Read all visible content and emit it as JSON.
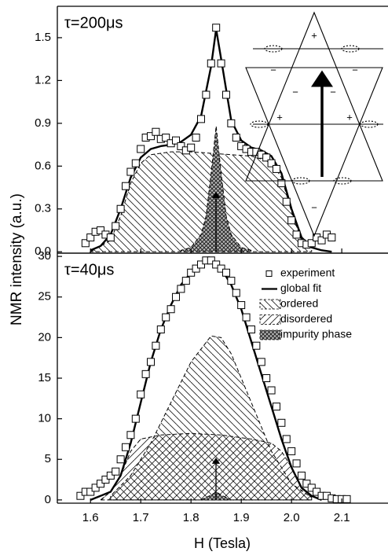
{
  "chart_data": [
    {
      "type": "line",
      "annotation": "τ=200μs",
      "ylabel": "NMR intensity (a.u.)",
      "xlim": [
        1.534,
        2.192
      ],
      "ylim": [
        -0.01,
        1.72
      ],
      "yticks": [
        {
          "value": 0,
          "label": "0.0"
        },
        0.3,
        0.6,
        0.9,
        1.2,
        1.5
      ],
      "inset_signs": [
        "+",
        "−",
        "−",
        "−",
        "−",
        "+",
        "+",
        "−"
      ],
      "series": [
        {
          "style": "area",
          "pattern": "back-diagonal",
          "color": "#000",
          "x": [
            1.6,
            1.64,
            1.66,
            1.68,
            1.7,
            1.72,
            1.76,
            1.8,
            1.84,
            1.88,
            1.92,
            1.96,
            1.98,
            2.0,
            2.02,
            2.04
          ],
          "values": [
            0,
            0.08,
            0.25,
            0.48,
            0.62,
            0.68,
            0.7,
            0.7,
            0.69,
            0.68,
            0.67,
            0.63,
            0.52,
            0.28,
            0.08,
            0.01
          ]
        },
        {
          "style": "area",
          "pattern": "cross",
          "color": "#000",
          "x": [
            1.78,
            1.8,
            1.82,
            1.83,
            1.84,
            1.85,
            1.86,
            1.87,
            1.88,
            1.9,
            1.92
          ],
          "values": [
            0.01,
            0.03,
            0.12,
            0.25,
            0.55,
            0.88,
            0.55,
            0.25,
            0.12,
            0.03,
            0.01
          ]
        },
        {
          "style": "line",
          "color": "#000",
          "x": [
            1.6,
            1.62,
            1.64,
            1.66,
            1.68,
            1.7,
            1.72,
            1.74,
            1.76,
            1.78,
            1.8,
            1.82,
            1.84,
            1.85,
            1.86,
            1.88,
            1.9,
            1.92,
            1.94,
            1.96,
            1.98,
            2.0,
            2.02,
            2.04,
            2.06,
            2.08
          ],
          "values": [
            0.01,
            0.04,
            0.12,
            0.3,
            0.52,
            0.66,
            0.72,
            0.74,
            0.75,
            0.77,
            0.82,
            0.95,
            1.3,
            1.56,
            1.35,
            0.92,
            0.78,
            0.73,
            0.71,
            0.67,
            0.55,
            0.3,
            0.1,
            0.03,
            0.01,
            0
          ]
        },
        {
          "style": "markers",
          "color": "#000",
          "x": [
            1.59,
            1.6,
            1.61,
            1.62,
            1.63,
            1.64,
            1.65,
            1.66,
            1.67,
            1.68,
            1.69,
            1.7,
            1.71,
            1.72,
            1.73,
            1.74,
            1.75,
            1.76,
            1.77,
            1.78,
            1.79,
            1.8,
            1.81,
            1.82,
            1.83,
            1.84,
            1.85,
            1.86,
            1.87,
            1.88,
            1.89,
            1.9,
            1.91,
            1.92,
            1.93,
            1.94,
            1.95,
            1.96,
            1.97,
            1.98,
            1.99,
            2.0,
            2.01,
            2.02,
            2.03,
            2.04,
            2.05,
            2.06,
            2.07,
            2.08
          ],
          "values": [
            0.06,
            0.1,
            0.14,
            0.15,
            0.12,
            0.1,
            0.18,
            0.3,
            0.46,
            0.56,
            0.62,
            0.72,
            0.8,
            0.81,
            0.84,
            0.79,
            0.8,
            0.76,
            0.78,
            0.74,
            0.71,
            0.73,
            0.8,
            0.93,
            1.1,
            1.32,
            1.57,
            1.32,
            1.1,
            0.9,
            0.8,
            0.74,
            0.72,
            0.7,
            0.7,
            0.68,
            0.66,
            0.62,
            0.58,
            0.48,
            0.35,
            0.22,
            0.12,
            0.06,
            0.05,
            0.06,
            0.1,
            0.08,
            0.12,
            0.1
          ]
        }
      ]
    },
    {
      "type": "line",
      "annotation": "τ=40μs",
      "xlabel": "H (Tesla)",
      "xlim": [
        1.534,
        2.192
      ],
      "ylim": [
        -0.4,
        30.4
      ],
      "xticks": [
        1.6,
        1.7,
        1.8,
        1.9,
        {
          "value": 2.0,
          "label": "2.0"
        },
        2.1
      ],
      "yticks": [
        0,
        5,
        10,
        15,
        20,
        25,
        30
      ],
      "legend": "top right",
      "series": [
        {
          "name": "experiment",
          "style": "markers",
          "color": "#000",
          "x": [
            1.58,
            1.59,
            1.6,
            1.61,
            1.62,
            1.63,
            1.64,
            1.65,
            1.66,
            1.67,
            1.68,
            1.69,
            1.7,
            1.71,
            1.72,
            1.73,
            1.74,
            1.75,
            1.76,
            1.77,
            1.78,
            1.79,
            1.8,
            1.81,
            1.82,
            1.83,
            1.84,
            1.85,
            1.86,
            1.87,
            1.88,
            1.89,
            1.9,
            1.91,
            1.92,
            1.93,
            1.94,
            1.95,
            1.96,
            1.97,
            1.98,
            1.99,
            2.0,
            2.01,
            2.02,
            2.03,
            2.04,
            2.05,
            2.06,
            2.07,
            2.08,
            2.09,
            2.1,
            2.11
          ],
          "values": [
            0.5,
            1,
            1,
            1.5,
            2,
            2.5,
            3,
            3.5,
            5,
            6.5,
            8,
            10,
            13,
            15.5,
            17,
            19,
            21,
            22.5,
            23.5,
            25,
            26,
            27,
            28,
            28.5,
            29,
            29.5,
            29.5,
            29,
            28.5,
            28,
            27,
            25.5,
            24,
            22.5,
            21,
            19,
            17,
            15,
            13.5,
            11.5,
            9.5,
            7.5,
            6,
            4.5,
            3,
            2,
            1.5,
            1,
            0.5,
            0.5,
            0.2,
            0.1,
            0.1,
            0.1
          ]
        },
        {
          "name": "global fit",
          "style": "line",
          "color": "#000",
          "x": [
            1.6,
            1.64,
            1.66,
            1.68,
            1.7,
            1.72,
            1.74,
            1.76,
            1.78,
            1.8,
            1.82,
            1.84,
            1.86,
            1.88,
            1.9,
            1.92,
            1.94,
            1.96,
            1.98,
            2.0,
            2.02,
            2.04,
            2.06
          ],
          "values": [
            0,
            1,
            3,
            7,
            12,
            17,
            21,
            24,
            26.5,
            28,
            29,
            29.5,
            28.5,
            26.5,
            23.5,
            19.5,
            15.5,
            11.5,
            7.5,
            4,
            1.5,
            0.5,
            0
          ]
        },
        {
          "name": "ordered",
          "style": "area",
          "pattern": "back-diagonal",
          "color": "#000",
          "x": [
            1.64,
            1.68,
            1.72,
            1.76,
            1.8,
            1.84,
            1.86,
            1.88,
            1.92,
            1.96,
            2.0,
            2.04
          ],
          "values": [
            0.5,
            3,
            7,
            12,
            17,
            20.2,
            20,
            18,
            12,
            6,
            2,
            0.3
          ]
        },
        {
          "name": "disordered",
          "style": "area",
          "pattern": "diagonal",
          "color": "#000",
          "x": [
            1.62,
            1.64,
            1.66,
            1.68,
            1.7,
            1.74,
            1.8,
            1.86,
            1.92,
            1.96,
            1.98,
            2.0,
            2.02,
            2.04
          ],
          "values": [
            0,
            1,
            3,
            6,
            7.5,
            8,
            8.2,
            8,
            7.5,
            7,
            6,
            4,
            1.5,
            0.3
          ]
        },
        {
          "name": "impurity phase",
          "style": "area",
          "pattern": "cross",
          "color": "#000",
          "x": [
            1.82,
            1.84,
            1.85,
            1.86,
            1.88
          ],
          "values": [
            0,
            0.6,
            1,
            0.6,
            0
          ]
        }
      ]
    }
  ]
}
